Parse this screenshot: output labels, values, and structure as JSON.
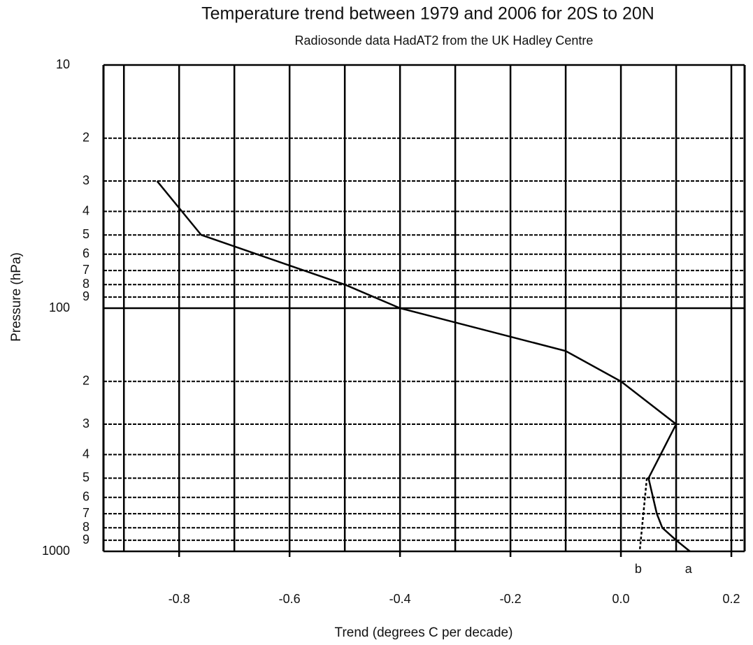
{
  "chart_data": {
    "type": "line",
    "title": "Temperature trend between 1979 and 2006 for 20S to 20N",
    "subtitle": "Radiosonde data HadAT2 from the UK Hadley Centre",
    "x_label": "Trend (degrees C per decade)",
    "y_label": "Pressure (hPa)",
    "xlim": [
      -0.937,
      0.224
    ],
    "xticks": [
      -0.8,
      -0.6,
      -0.4,
      -0.2,
      {
        "value": 0,
        "label": "0.0"
      },
      0.2
    ],
    "x_minor_grid": [
      -0.9,
      -0.7,
      -0.5,
      -0.3,
      -0.1,
      0.1
    ],
    "ylim": [
      10,
      1000
    ],
    "y_log": true,
    "y_inverted": true,
    "yticks": [
      10,
      {
        "value": 20,
        "label": "2"
      },
      {
        "value": 30,
        "label": "3"
      },
      {
        "value": 40,
        "label": "4"
      },
      {
        "value": 50,
        "label": "5"
      },
      {
        "value": 60,
        "label": "6"
      },
      {
        "value": 70,
        "label": "7"
      },
      {
        "value": 80,
        "label": "8"
      },
      {
        "value": 90,
        "label": "9"
      },
      100,
      {
        "value": 200,
        "label": "2"
      },
      {
        "value": 300,
        "label": "3"
      },
      {
        "value": 400,
        "label": "4"
      },
      {
        "value": 500,
        "label": "5"
      },
      {
        "value": 600,
        "label": "6"
      },
      {
        "value": 700,
        "label": "7"
      },
      {
        "value": 800,
        "label": "8"
      },
      {
        "value": 900,
        "label": "9"
      },
      1000
    ],
    "grid": true,
    "series": [
      {
        "name": "a",
        "color": "#000000",
        "linestyle": "solid",
        "x": [
          -0.84,
          -0.76,
          -0.5,
          -0.4,
          -0.1,
          0.0,
          0.1,
          0.05,
          0.065,
          0.075,
          0.1,
          0.125
        ],
        "values": [
          30,
          50,
          80,
          100,
          150,
          200,
          300,
          500,
          700,
          800,
          900,
          1000
        ]
      },
      {
        "name": "b",
        "color": "#000000",
        "linestyle": "dashed",
        "x": [
          0.047,
          0.034
        ],
        "values": [
          500,
          1000
        ]
      }
    ]
  }
}
